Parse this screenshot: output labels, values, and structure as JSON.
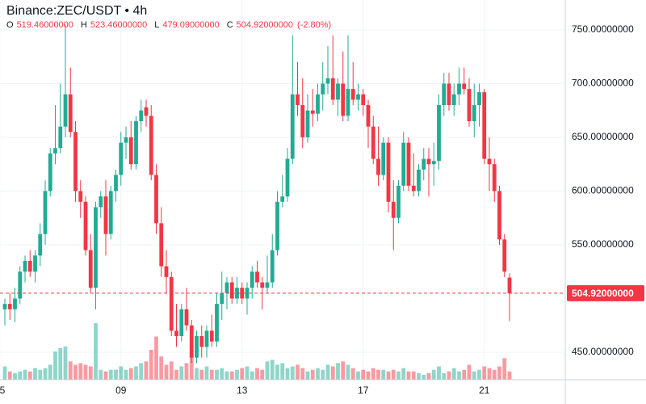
{
  "chart_data": {
    "type": "candlestick",
    "title": "Binance:ZEC/USDT • 4h",
    "ohlc_legend": [
      {
        "label": "O",
        "value": "519.46000000"
      },
      {
        "label": "H",
        "value": "523.46000000"
      },
      {
        "label": "L",
        "value": "479.09000000"
      },
      {
        "label": "C",
        "value": "504.92000000"
      }
    ],
    "change": "(-2.80%)",
    "up_color": "#22ab94",
    "down_color": "#f23645",
    "grid": true,
    "ylim": [
      424.4,
      777.8
    ],
    "yticks": [
      {
        "value": 450,
        "label": "450.00000000"
      },
      {
        "value": 550,
        "label": "550.00000000"
      },
      {
        "value": 600,
        "label": "600.00000000"
      },
      {
        "value": 650,
        "label": "650.00000000"
      },
      {
        "value": 700,
        "label": "700.00000000"
      },
      {
        "value": 750,
        "label": "750.00000000"
      }
    ],
    "xticks": [
      {
        "value": -1,
        "label": "5"
      },
      {
        "value": 23,
        "label": "09"
      },
      {
        "value": 47,
        "label": "13"
      },
      {
        "value": 71,
        "label": "17"
      },
      {
        "value": 95,
        "label": "21"
      }
    ],
    "last_price": {
      "value": 504.92,
      "label": "504.92000000"
    },
    "open": [
      490,
      495,
      490,
      500,
      525,
      535,
      525,
      540,
      560,
      600,
      635,
      640,
      660,
      690,
      655,
      600,
      590,
      545,
      510,
      585,
      595,
      560,
      600,
      615,
      645,
      650,
      625,
      665,
      678,
      670,
      615,
      570,
      530,
      520,
      470,
      465,
      490,
      475,
      445,
      465,
      455,
      470,
      460,
      495,
      505,
      515,
      500,
      510,
      500,
      510,
      525,
      515,
      510,
      515,
      545,
      590,
      595,
      630,
      690,
      680,
      650,
      675,
      672,
      690,
      700,
      705,
      685,
      700,
      670,
      695,
      685,
      690,
      680,
      660,
      630,
      615,
      645,
      590,
      575,
      605,
      645,
      605,
      600,
      620,
      630,
      625,
      628,
      680,
      700,
      680,
      690,
      700,
      695,
      665,
      680,
      692,
      630,
      625,
      600,
      555,
      519.46
    ],
    "high": [
      500,
      505,
      510,
      530,
      540,
      545,
      545,
      570,
      610,
      640,
      680,
      700,
      755,
      715,
      665,
      610,
      595,
      560,
      590,
      600,
      610,
      605,
      620,
      655,
      660,
      665,
      670,
      685,
      685,
      680,
      625,
      585,
      545,
      525,
      495,
      495,
      510,
      480,
      470,
      475,
      475,
      485,
      505,
      525,
      520,
      520,
      520,
      515,
      515,
      530,
      535,
      520,
      540,
      560,
      600,
      615,
      640,
      745,
      720,
      705,
      690,
      695,
      700,
      720,
      735,
      745,
      705,
      730,
      745,
      720,
      700,
      695,
      685,
      670,
      660,
      650,
      650,
      610,
      610,
      655,
      650,
      635,
      625,
      640,
      640,
      645,
      690,
      710,
      710,
      700,
      715,
      715,
      705,
      700,
      700,
      695,
      650,
      630,
      605,
      560,
      523.46
    ],
    "low": [
      475,
      480,
      478,
      495,
      515,
      520,
      515,
      530,
      550,
      595,
      625,
      635,
      650,
      650,
      590,
      575,
      540,
      505,
      490,
      575,
      540,
      555,
      590,
      605,
      630,
      620,
      620,
      655,
      660,
      610,
      560,
      520,
      505,
      465,
      455,
      460,
      470,
      440,
      440,
      445,
      445,
      455,
      455,
      480,
      490,
      495,
      495,
      495,
      485,
      500,
      510,
      490,
      505,
      510,
      540,
      585,
      590,
      625,
      670,
      640,
      645,
      660,
      665,
      675,
      690,
      680,
      670,
      665,
      665,
      680,
      675,
      670,
      640,
      625,
      605,
      610,
      580,
      545,
      570,
      600,
      600,
      595,
      595,
      610,
      595,
      605,
      620,
      670,
      675,
      670,
      680,
      690,
      660,
      650,
      660,
      625,
      600,
      590,
      550,
      520,
      479.09
    ],
    "close": [
      495,
      490,
      500,
      525,
      535,
      525,
      540,
      560,
      600,
      635,
      640,
      660,
      690,
      655,
      600,
      590,
      545,
      510,
      585,
      595,
      560,
      600,
      615,
      645,
      650,
      625,
      665,
      675,
      670,
      615,
      570,
      530,
      520,
      470,
      465,
      490,
      475,
      445,
      465,
      455,
      470,
      460,
      495,
      505,
      515,
      500,
      510,
      500,
      510,
      525,
      515,
      510,
      515,
      545,
      590,
      595,
      630,
      690,
      680,
      650,
      675,
      672,
      690,
      700,
      705,
      685,
      700,
      670,
      695,
      685,
      690,
      680,
      660,
      630,
      615,
      645,
      590,
      575,
      605,
      645,
      605,
      600,
      620,
      630,
      625,
      628,
      680,
      700,
      680,
      690,
      700,
      695,
      665,
      680,
      692,
      630,
      625,
      600,
      555,
      525,
      504.92
    ],
    "volume": [
      16,
      10,
      8,
      10,
      12,
      10,
      14,
      12,
      14,
      18,
      34,
      38,
      40,
      22,
      18,
      20,
      18,
      16,
      68,
      12,
      10,
      12,
      12,
      16,
      12,
      14,
      16,
      20,
      22,
      36,
      52,
      28,
      18,
      22,
      12,
      16,
      20,
      32,
      14,
      12,
      16,
      12,
      12,
      14,
      10,
      10,
      12,
      14,
      16,
      10,
      14,
      12,
      22,
      24,
      18,
      20,
      14,
      16,
      18,
      14,
      10,
      12,
      14,
      12,
      18,
      16,
      20,
      22,
      18,
      14,
      10,
      12,
      10,
      14,
      12,
      12,
      10,
      12,
      10,
      14,
      10,
      10,
      8,
      6,
      8,
      12,
      16,
      8,
      10,
      14,
      10,
      12,
      18,
      10,
      12,
      16,
      14,
      12,
      16,
      26,
      10
    ]
  }
}
